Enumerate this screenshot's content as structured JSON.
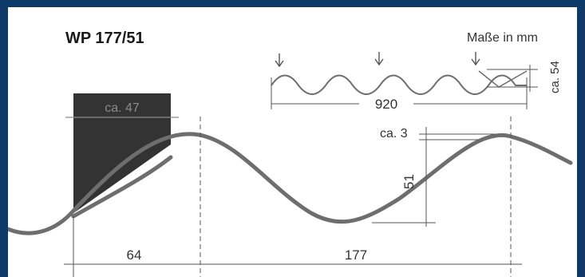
{
  "title": "WP 177/51",
  "units_note": "Maße in mm",
  "profile_label": "WP 177/51",
  "dimensions": {
    "sheet_width": "920",
    "sheet_height": "ca. 54",
    "wave_height": "51",
    "wave_pitch": "177",
    "overlap_width": "64",
    "sheet_thickness": "ca. 3",
    "fastener_width": "ca. 47"
  },
  "colors": {
    "frame": "#0d3a68",
    "profile": "#6e6e6e",
    "dim_line": "#555555",
    "fastener": "#333333",
    "fastener_label": "#8a8a8a"
  }
}
